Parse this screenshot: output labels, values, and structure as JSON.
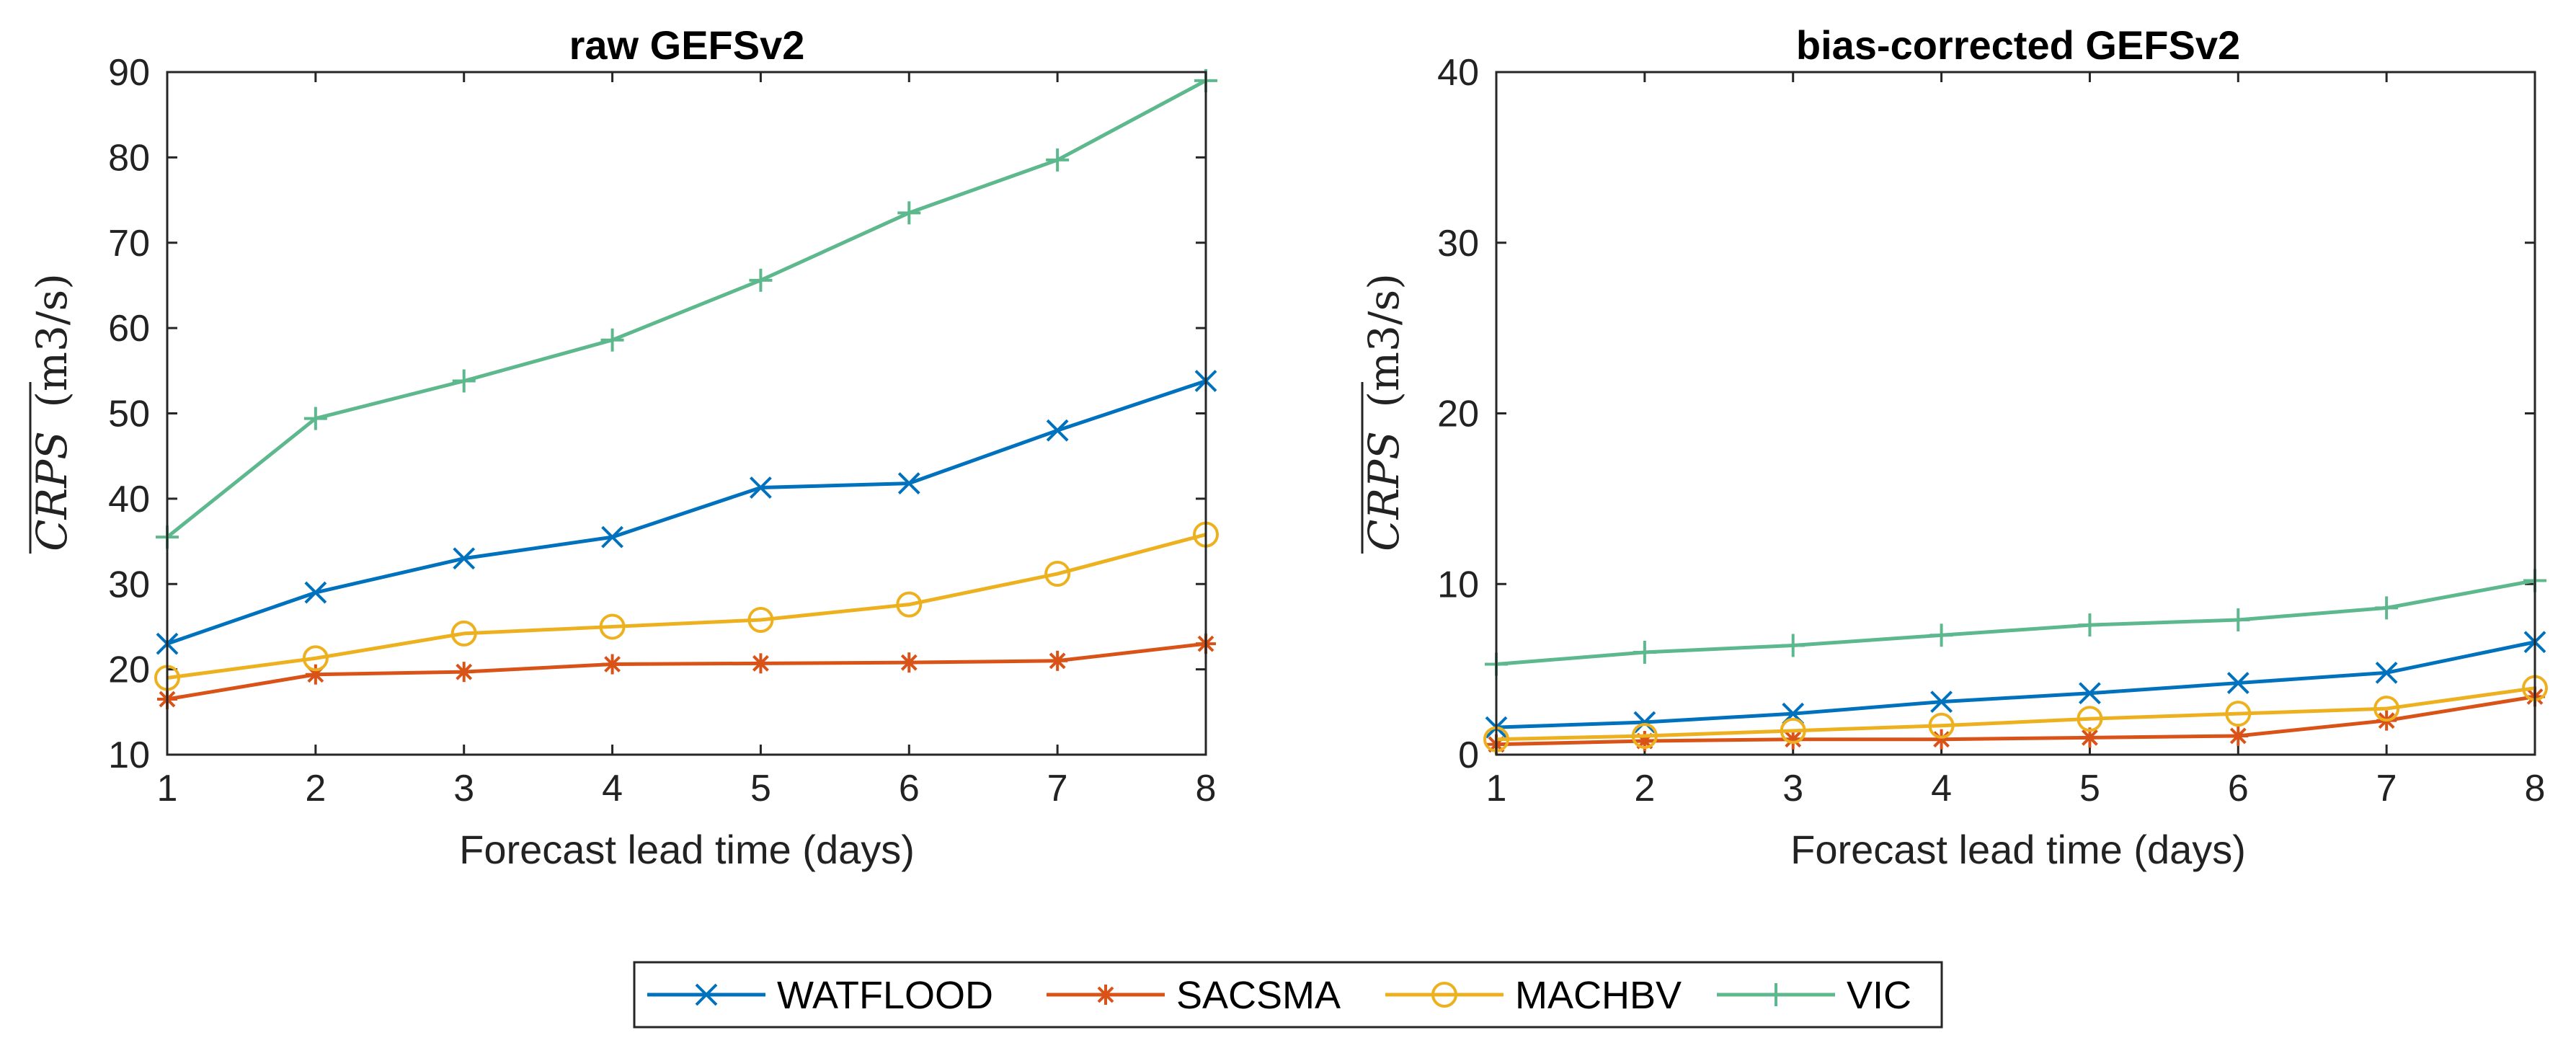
{
  "chart_data": [
    {
      "type": "line",
      "title": "raw GEFSv2",
      "xlabel": "Forecast lead time (days)",
      "ylabel_metric": "CRPS",
      "ylabel_unit": "(m3/s)",
      "x": [
        1,
        2,
        3,
        4,
        5,
        6,
        7,
        8
      ],
      "xlim": [
        1,
        8
      ],
      "ylim": [
        10,
        90
      ],
      "yticks": [
        10,
        20,
        30,
        40,
        50,
        60,
        70,
        80,
        90
      ],
      "grid": false,
      "series": [
        {
          "name": "WATFLOOD",
          "color": "#0072BD",
          "marker": "x",
          "values": [
            23.0,
            29.0,
            33.0,
            35.5,
            41.3,
            41.8,
            48.0,
            53.8
          ]
        },
        {
          "name": "SACSMA",
          "color": "#D95319",
          "marker": "asterisk",
          "values": [
            16.5,
            19.4,
            19.7,
            20.6,
            20.7,
            20.8,
            21.0,
            23.0
          ]
        },
        {
          "name": "MACHBV",
          "color": "#EDB120",
          "marker": "circle",
          "values": [
            19.0,
            21.3,
            24.2,
            25.0,
            25.8,
            27.6,
            31.2,
            35.8
          ]
        },
        {
          "name": "VIC",
          "color": "#5DB88E",
          "marker": "plus",
          "values": [
            35.5,
            49.4,
            53.8,
            58.6,
            65.6,
            73.5,
            79.7,
            89.0
          ]
        }
      ]
    },
    {
      "type": "line",
      "title": "bias-corrected GEFSv2",
      "xlabel": "Forecast lead time (days)",
      "ylabel_metric": "CRPS",
      "ylabel_unit": "(m3/s)",
      "x": [
        1,
        2,
        3,
        4,
        5,
        6,
        7,
        8
      ],
      "xlim": [
        1,
        8
      ],
      "ylim": [
        0,
        40
      ],
      "yticks": [
        0,
        10,
        20,
        30,
        40
      ],
      "grid": false,
      "series": [
        {
          "name": "WATFLOOD",
          "color": "#0072BD",
          "marker": "x",
          "values": [
            1.6,
            1.9,
            2.4,
            3.1,
            3.6,
            4.2,
            4.8,
            6.6
          ]
        },
        {
          "name": "SACSMA",
          "color": "#D95319",
          "marker": "asterisk",
          "values": [
            0.6,
            0.8,
            0.9,
            0.9,
            1.0,
            1.1,
            2.0,
            3.4
          ]
        },
        {
          "name": "MACHBV",
          "color": "#EDB120",
          "marker": "circle",
          "values": [
            0.9,
            1.1,
            1.4,
            1.7,
            2.1,
            2.4,
            2.7,
            3.9
          ]
        },
        {
          "name": "VIC",
          "color": "#5DB88E",
          "marker": "plus",
          "values": [
            5.3,
            6.0,
            6.4,
            7.0,
            7.6,
            7.9,
            8.6,
            10.2
          ]
        }
      ]
    }
  ],
  "legend": {
    "placement": "bottom-center",
    "entries": [
      "WATFLOOD",
      "SACSMA",
      "MACHBV",
      "VIC"
    ]
  }
}
